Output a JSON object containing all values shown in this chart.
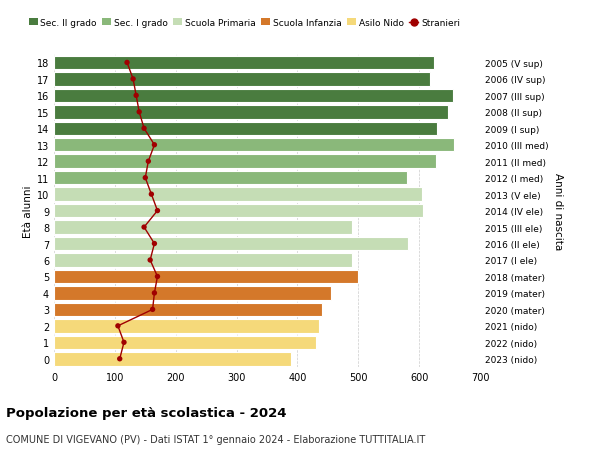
{
  "ages": [
    18,
    17,
    16,
    15,
    14,
    13,
    12,
    11,
    10,
    9,
    8,
    7,
    6,
    5,
    4,
    3,
    2,
    1,
    0
  ],
  "right_labels": [
    "2005 (V sup)",
    "2006 (IV sup)",
    "2007 (III sup)",
    "2008 (II sup)",
    "2009 (I sup)",
    "2010 (III med)",
    "2011 (II med)",
    "2012 (I med)",
    "2013 (V ele)",
    "2014 (IV ele)",
    "2015 (III ele)",
    "2016 (II ele)",
    "2017 (I ele)",
    "2018 (mater)",
    "2019 (mater)",
    "2020 (mater)",
    "2021 (nido)",
    "2022 (nido)",
    "2023 (nido)"
  ],
  "bar_values": [
    625,
    618,
    655,
    648,
    630,
    658,
    628,
    580,
    605,
    607,
    490,
    582,
    490,
    500,
    455,
    440,
    435,
    430,
    390
  ],
  "stranieri_values": [
    120,
    130,
    135,
    140,
    148,
    165,
    155,
    150,
    160,
    170,
    148,
    165,
    158,
    170,
    165,
    162,
    105,
    115,
    108
  ],
  "bar_colors": [
    "#4a7c3f",
    "#4a7c3f",
    "#4a7c3f",
    "#4a7c3f",
    "#4a7c3f",
    "#8ab87a",
    "#8ab87a",
    "#8ab87a",
    "#c5ddb5",
    "#c5ddb5",
    "#c5ddb5",
    "#c5ddb5",
    "#c5ddb5",
    "#d4782a",
    "#d4782a",
    "#d4782a",
    "#f5d97a",
    "#f5d97a",
    "#f5d97a"
  ],
  "legend_labels": [
    "Sec. II grado",
    "Sec. I grado",
    "Scuola Primaria",
    "Scuola Infanzia",
    "Asilo Nido",
    "Stranieri"
  ],
  "legend_colors": [
    "#4a7c3f",
    "#8ab87a",
    "#c5ddb5",
    "#d4782a",
    "#f5d97a",
    "#a00000"
  ],
  "ylabel_left": "Età alunni",
  "ylabel_right": "Anni di nascita",
  "title": "Popolazione per età scolastica - 2024",
  "subtitle": "COMUNE DI VIGEVANO (PV) - Dati ISTAT 1° gennaio 2024 - Elaborazione TUTTITALIA.IT",
  "xlim": [
    0,
    700
  ],
  "xticks": [
    0,
    100,
    200,
    300,
    400,
    500,
    600,
    700
  ],
  "background_color": "#ffffff",
  "grid_color": "#cccccc",
  "stranieri_color": "#a00000",
  "bar_height": 0.82
}
